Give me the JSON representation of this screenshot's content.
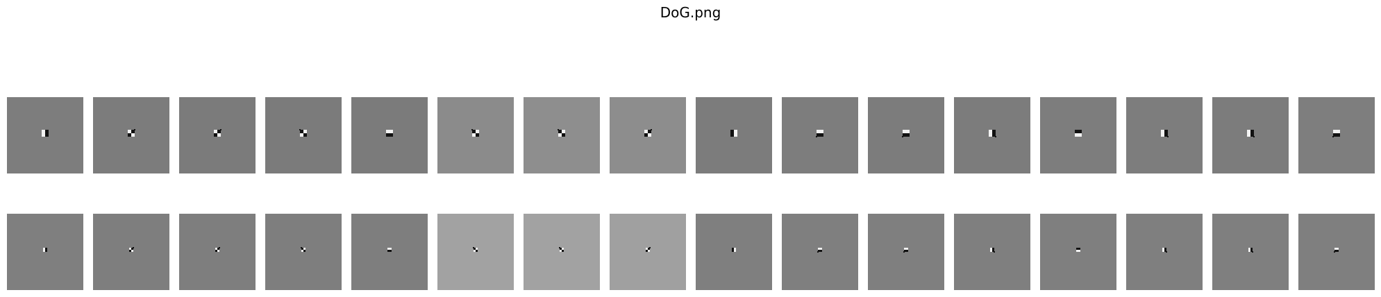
{
  "figure": {
    "title": "DoG.png",
    "rows": [
      {
        "tiles": [
          {
            "bg": "#7d7d7d",
            "pattern": "v-split-dark-right"
          },
          {
            "bg": "#7c7c7c",
            "pattern": "diag-dark-upper-right"
          },
          {
            "bg": "#7b7b7b",
            "pattern": "diag-dark-upper-right"
          },
          {
            "bg": "#7b7b7b",
            "pattern": "diag-dark-upper-left"
          },
          {
            "bg": "#7b7b7b",
            "pattern": "h-split-dark-bottom"
          },
          {
            "bg": "#8b8b8b",
            "pattern": "diag-dark-upper-left"
          },
          {
            "bg": "#8e8e8e",
            "pattern": "diag-dark-upper-left"
          },
          {
            "bg": "#8d8d8d",
            "pattern": "diag-dark-upper-right"
          },
          {
            "bg": "#7c7c7c",
            "pattern": "v-split-dark-left"
          },
          {
            "bg": "#7d7d7d",
            "pattern": "diag-dark-lower-left"
          },
          {
            "bg": "#7c7c7c",
            "pattern": "diag-dark-lower-left"
          },
          {
            "bg": "#7c7c7c",
            "pattern": "diag-dark-lower-right"
          },
          {
            "bg": "#7d7d7d",
            "pattern": "h-split-dark-top"
          },
          {
            "bg": "#7d7d7d",
            "pattern": "diag-dark-lower-right"
          },
          {
            "bg": "#7c7c7c",
            "pattern": "diag-dark-lower-right"
          },
          {
            "bg": "#7e7e7e",
            "pattern": "diag-dark-lower-left"
          }
        ]
      },
      {
        "tiles": [
          {
            "bg": "#7f7f7f",
            "pattern": "v-split-dark-right-small"
          },
          {
            "bg": "#7e7e7e",
            "pattern": "diag-dark-upper-right-small"
          },
          {
            "bg": "#7e7e7e",
            "pattern": "diag-dark-upper-right-small"
          },
          {
            "bg": "#7e7e7e",
            "pattern": "diag-dark-upper-left-small"
          },
          {
            "bg": "#7e7e7e",
            "pattern": "h-split-dark-bottom-small"
          },
          {
            "bg": "#a2a2a2",
            "pattern": "diag-dark-upper-left-small"
          },
          {
            "bg": "#a2a2a2",
            "pattern": "diag-dark-upper-left-small"
          },
          {
            "bg": "#a0a0a0",
            "pattern": "diag-dark-upper-right-small"
          },
          {
            "bg": "#7f7f7f",
            "pattern": "v-split-dark-left-small"
          },
          {
            "bg": "#7f7f7f",
            "pattern": "diag-dark-lower-left-small"
          },
          {
            "bg": "#7f7f7f",
            "pattern": "diag-dark-lower-left-small"
          },
          {
            "bg": "#7f7f7f",
            "pattern": "diag-dark-lower-right-small"
          },
          {
            "bg": "#7f7f7f",
            "pattern": "h-split-dark-top-small"
          },
          {
            "bg": "#7f7f7f",
            "pattern": "diag-dark-lower-right-small"
          },
          {
            "bg": "#7f7f7f",
            "pattern": "diag-dark-lower-right-small"
          },
          {
            "bg": "#7f7f7f",
            "pattern": "diag-dark-lower-left-small"
          }
        ]
      }
    ]
  }
}
